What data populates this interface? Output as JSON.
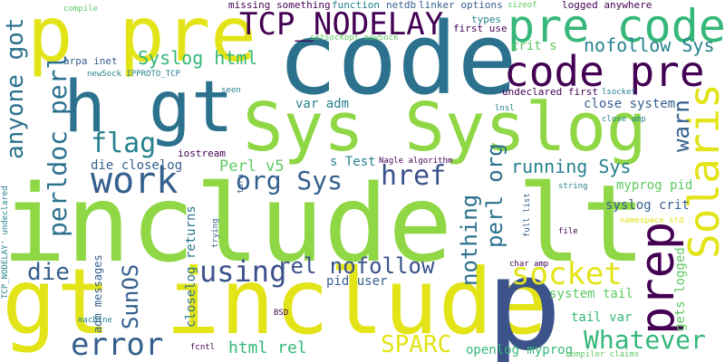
{
  "palette": {
    "lime": "#8fd744",
    "yellow": "#e3e418",
    "teal": "#26828e",
    "darkblue": "#355f8d",
    "purple": "#440154",
    "green": "#35b779",
    "indigo": "#3b528b",
    "mint": "#5ec962"
  },
  "words": {
    "include_lt": "include lt",
    "gt_include": "gt include",
    "code": "code",
    "sys_syslog": "Sys Syslog",
    "p_pre": "p pre",
    "p": "p",
    "h_gt": "h gt",
    "pre_code": "pre code",
    "code_pre": "code pre",
    "tcp_nodelay": "TCP_NODELAY",
    "work": "work",
    "error": "error",
    "socket": "socket",
    "prep": "prep",
    "solaris": "Solaris",
    "sparc": "SPARC",
    "whatever": "Whatever",
    "using": "using",
    "href": "href",
    "flag": "flag",
    "die": "die",
    "org_sys": "org Sys",
    "rel_nofollow": "rel nofollow",
    "perldoc_perl": "perldoc perl",
    "anyone_got": "anyone got",
    "nofollow_sys": "nofollow Sys",
    "syslog_html": "Syslog html",
    "warn": "warn",
    "sunos": "SunOS",
    "nothing": "nothing",
    "perl_org": "perl org",
    "running_sys": "running Sys",
    "html_rel": "html rel",
    "tail_var": "tail var",
    "perl_v5": "Perl v5",
    "die_closelog": "die closelog",
    "openlog_myprog": "openlog myprog",
    "myprog_pid": "myprog pid",
    "syslog_crit": "syslog crit",
    "system_tail": "system tail",
    "close_system": "close system",
    "var_adm": "var adm",
    "pid_user": "pid user",
    "crit_s": "crit s",
    "s_test": "s Test",
    "gets_logged": "gets logged",
    "closelog_returns": "closelog returns",
    "adm_messages": "adm messages",
    "logged_anywhere": "logged anywhere",
    "missing_something": "missing something",
    "function": "function",
    "netdb": "netdb",
    "linker_options": "linker options",
    "sizeof": "sizeof",
    "compile": "compile",
    "setsockopt_newsock": "setsockopt newSock",
    "first_use": "first use",
    "types": "types",
    "arpa_inet": "arpa inet",
    "newsock_ipproto_tcp": "newSock IPPROTO_TCP",
    "undeclared_first": "undeclared first",
    "lsocket": "lsocket",
    "seen": "seen",
    "lnsl": "lnsl",
    "iostream": "iostream",
    "nagle_algorithm": "Nagle algorithm",
    "turn": "turn",
    "trying": "trying",
    "close_amp": "close amp",
    "string": "string",
    "full_list": "full list",
    "namespace_std": "namespace std",
    "file": "file",
    "tcp_nodelay_undeclared": "TCP_NODELAY' undeclared",
    "char_amp": "char amp",
    "bsd": "BSD",
    "machine": "machine",
    "fcntl": "fcntl",
    "compiler_claims": "compiler claims"
  }
}
